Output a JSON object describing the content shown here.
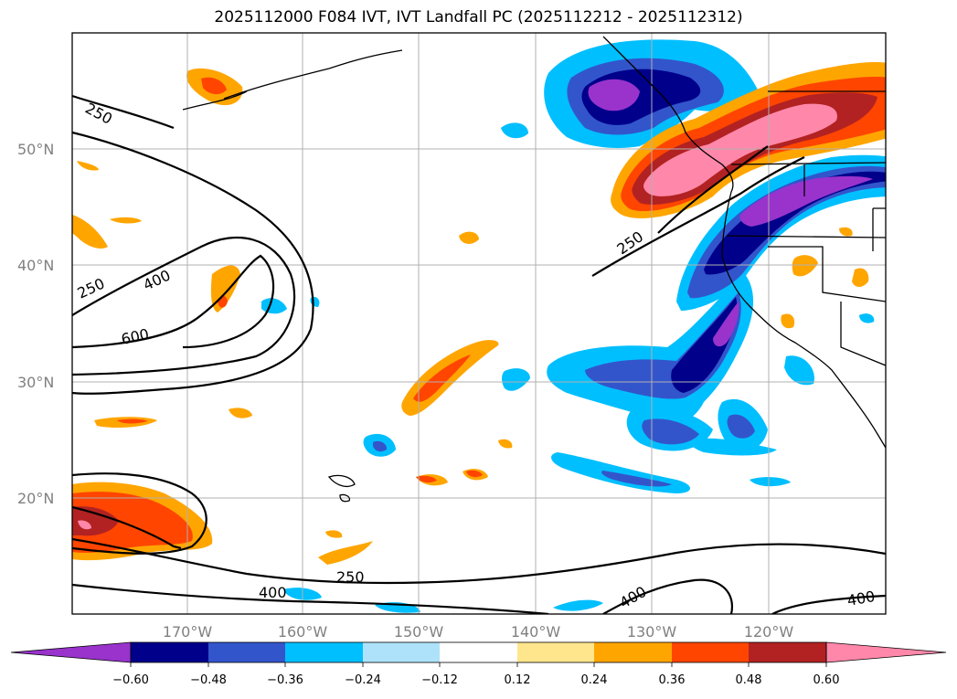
{
  "title": "2025112000 F084 IVT, IVT Landfall PC (2025112212 - 2025112312)",
  "map": {
    "lon_ticks": [
      "170°W",
      "160°W",
      "150°W",
      "140°W",
      "130°W",
      "120°W"
    ],
    "lat_ticks": [
      "50°N",
      "40°N",
      "30°N",
      "20°N"
    ],
    "contour_labels": [
      "250",
      "250",
      "400",
      "600",
      "250",
      "250",
      "400",
      "400",
      "400"
    ]
  },
  "colorbar": {
    "tick_labels": [
      "−0.60",
      "−0.48",
      "−0.36",
      "−0.24",
      "−0.12",
      "0.12",
      "0.24",
      "0.36",
      "0.48",
      "0.60"
    ],
    "colors": [
      "#9933cc",
      "#00008b",
      "#3355cc",
      "#00bfff",
      "#aee2fa",
      "#ffffff",
      "#ffe68c",
      "#ffa500",
      "#ff4500",
      "#b22222",
      "#ff88aa"
    ]
  },
  "colors": {
    "purple": "#9933cc",
    "navy": "#00008b",
    "blue": "#3355cc",
    "cyan": "#00bfff",
    "light_cyan": "#aee2fa",
    "yellow": "#ffe68c",
    "orange": "#ffa500",
    "red_orange": "#ff4500",
    "firebrick": "#b22222",
    "pink": "#ff88aa"
  }
}
